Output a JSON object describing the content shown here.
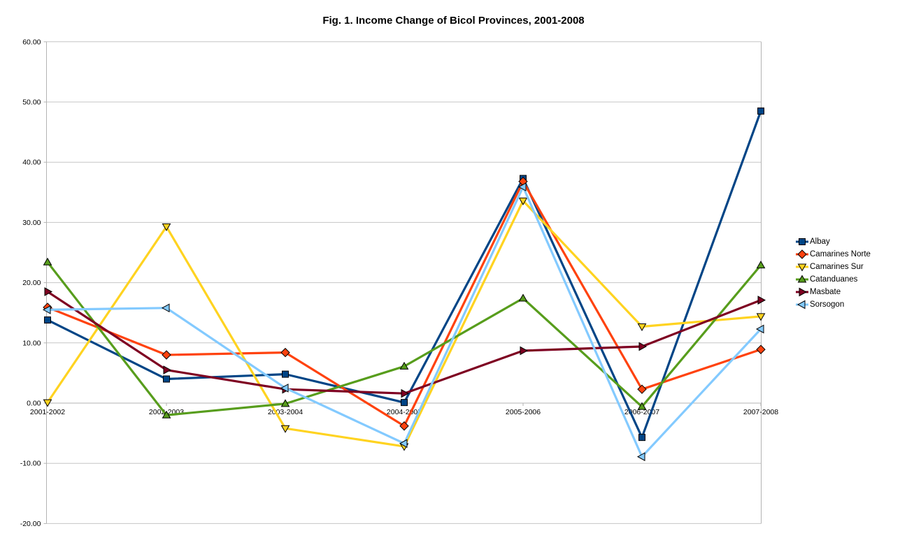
{
  "chart_data": {
    "type": "line",
    "title": "Fig. 1. Income Change of Bicol Provinces, 2001-2008",
    "categories": [
      "2001-2002",
      "2002-2003",
      "2003-2004",
      "2004-2005",
      "2005-2006",
      "2006-2007",
      "2007-2008"
    ],
    "series": [
      {
        "name": "Albay",
        "color": "#004586",
        "marker": "square",
        "values": [
          13.8,
          4.0,
          4.8,
          0.1,
          37.3,
          -5.7,
          48.5
        ]
      },
      {
        "name": "Camarines Norte",
        "color": "#FF420E",
        "marker": "diamond",
        "values": [
          15.9,
          8.0,
          8.4,
          -3.8,
          36.8,
          2.3,
          8.9
        ]
      },
      {
        "name": "Camarines Sur",
        "color": "#FFD320",
        "marker": "triangle-down",
        "values": [
          0.1,
          29.3,
          -4.2,
          -7.2,
          33.6,
          12.7,
          14.4
        ]
      },
      {
        "name": "Catanduanes",
        "color": "#579D1C",
        "marker": "triangle-up",
        "values": [
          23.4,
          -2.0,
          -0.1,
          6.1,
          17.4,
          -0.6,
          22.9
        ]
      },
      {
        "name": "Masbate",
        "color": "#7E0021",
        "marker": "triangle-right",
        "values": [
          18.5,
          5.5,
          2.3,
          1.6,
          8.7,
          9.4,
          17.1
        ]
      },
      {
        "name": "Sorsogon",
        "color": "#83CAFF",
        "marker": "triangle-left",
        "values": [
          15.5,
          15.8,
          2.5,
          -6.7,
          35.9,
          -8.9,
          12.3
        ]
      }
    ],
    "xlabel": "",
    "ylabel": "",
    "ylim": [
      -20,
      60
    ],
    "y_tick_step": 10,
    "y_tick_labels": [
      "-20.00",
      "-10.00",
      "0.00",
      "10.00",
      "20.00",
      "30.00",
      "40.00",
      "50.00",
      "60.00"
    ],
    "grid": "horizontal",
    "legend_position": "right",
    "gridline_color": "#c6c6c6",
    "axis_color": "#b3b3b3",
    "text_color": "#000000",
    "background_color": "#ffffff"
  }
}
